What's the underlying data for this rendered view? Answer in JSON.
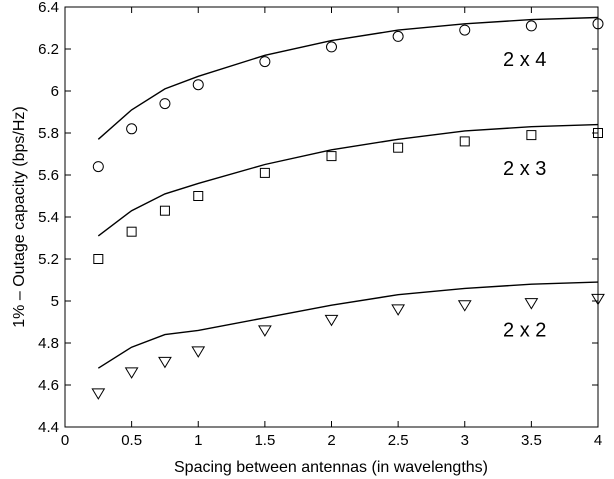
{
  "chart_data": {
    "type": "line",
    "title": "",
    "xlabel": "Spacing between antennas (in wavelengths)",
    "ylabel": "1% – Outage capacity (bps/Hz)",
    "xlim": [
      0,
      4
    ],
    "ylim": [
      4.4,
      6.4
    ],
    "xticks": [
      "0",
      "0.5",
      "1",
      "1.5",
      "2",
      "2.5",
      "3",
      "3.5",
      "4"
    ],
    "yticks": [
      "4.4",
      "4.6",
      "4.8",
      "5",
      "5.2",
      "5.4",
      "5.6",
      "5.8",
      "6",
      "6.2",
      "6.4"
    ],
    "grid": false,
    "legend": "none",
    "series": [
      {
        "name": "2 x 4",
        "marker": "circle",
        "line": {
          "x": [
            0.25,
            0.5,
            0.75,
            1,
            1.5,
            2,
            2.5,
            3,
            3.5,
            4
          ],
          "y": [
            5.77,
            5.91,
            6.01,
            6.07,
            6.17,
            6.24,
            6.29,
            6.32,
            6.34,
            6.35
          ]
        },
        "points": {
          "x": [
            0.25,
            0.5,
            0.75,
            1,
            1.5,
            2,
            2.5,
            3,
            3.5,
            4
          ],
          "y": [
            5.64,
            5.82,
            5.94,
            6.03,
            6.14,
            6.21,
            6.26,
            6.29,
            6.31,
            6.32
          ]
        }
      },
      {
        "name": "2 x 3",
        "marker": "square",
        "line": {
          "x": [
            0.25,
            0.5,
            0.75,
            1,
            1.5,
            2,
            2.5,
            3,
            3.5,
            4
          ],
          "y": [
            5.31,
            5.43,
            5.51,
            5.56,
            5.65,
            5.72,
            5.77,
            5.81,
            5.83,
            5.84
          ]
        },
        "points": {
          "x": [
            0.25,
            0.5,
            0.75,
            1,
            1.5,
            2,
            2.5,
            3,
            3.5,
            4
          ],
          "y": [
            5.2,
            5.33,
            5.43,
            5.5,
            5.61,
            5.69,
            5.73,
            5.76,
            5.79,
            5.8
          ]
        }
      },
      {
        "name": "2 x 2",
        "marker": "triangle-down",
        "line": {
          "x": [
            0.25,
            0.5,
            0.75,
            1,
            1.5,
            2,
            2.5,
            3,
            3.5,
            4
          ],
          "y": [
            4.68,
            4.78,
            4.84,
            4.86,
            4.92,
            4.98,
            5.03,
            5.06,
            5.08,
            5.09
          ]
        },
        "points": {
          "x": [
            0.25,
            0.5,
            0.75,
            1,
            1.5,
            2,
            2.5,
            3,
            3.5,
            4
          ],
          "y": [
            4.56,
            4.66,
            4.71,
            4.76,
            4.86,
            4.91,
            4.96,
            4.98,
            4.99,
            5.01
          ]
        }
      }
    ]
  }
}
